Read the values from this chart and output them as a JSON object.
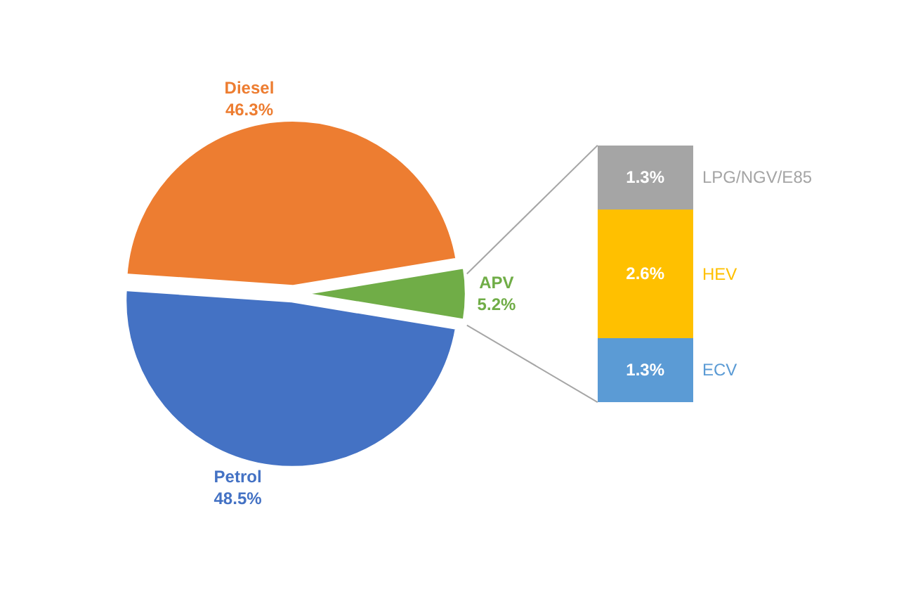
{
  "chart_data": [
    {
      "type": "pie",
      "categories": [
        "Diesel",
        "APV",
        "Petrol"
      ],
      "values": [
        46.3,
        5.2,
        48.5
      ],
      "colors": [
        "#ed7d31",
        "#70ad47",
        "#4472c4"
      ],
      "value_labels": [
        "46.3%",
        "5.2%",
        "48.5%"
      ]
    },
    {
      "type": "bar",
      "stacked": true,
      "categories": [
        null
      ],
      "tick_labels": false,
      "series": [
        {
          "name": "ECV",
          "color": "#5b9bd5",
          "values": [
            1.3
          ],
          "value_labels": [
            "1.3%"
          ]
        },
        {
          "name": "HEV",
          "color": "#ffc000",
          "values": [
            2.6
          ],
          "value_labels": [
            "2.6%"
          ]
        },
        {
          "name": "LPG/NGV/E85",
          "color": "#a5a5a5",
          "values": [
            1.3
          ],
          "value_labels": [
            "1.3%"
          ]
        }
      ]
    }
  ]
}
